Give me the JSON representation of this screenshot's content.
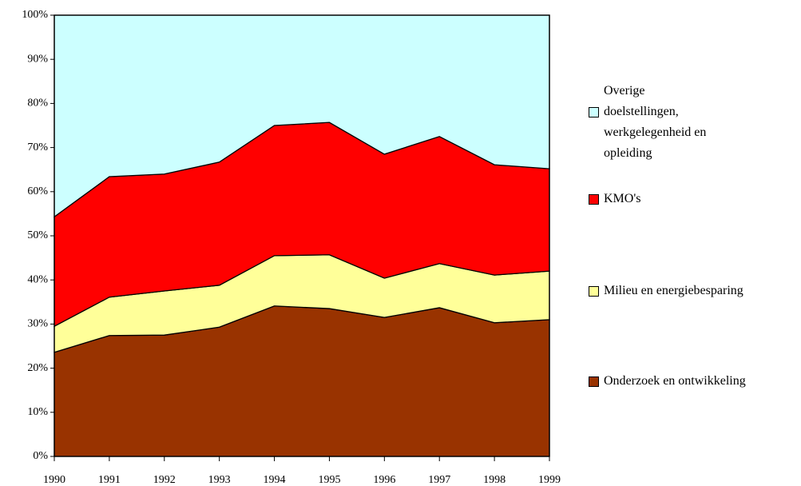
{
  "chart_data": {
    "type": "stacked-area",
    "categories": [
      "1990",
      "1991",
      "1992",
      "1993",
      "1994",
      "1995",
      "1996",
      "1997",
      "1998",
      "1999"
    ],
    "series": [
      {
        "name": "Onderzoek en ontwikkeling",
        "color": "#993300",
        "values": [
          23.6,
          27.4,
          27.5,
          29.3,
          34.1,
          33.5,
          31.5,
          33.7,
          30.3,
          31.0
        ]
      },
      {
        "name": "Milieu en energiebesparing",
        "color": "#ffff99",
        "values": [
          5.9,
          8.7,
          10.0,
          9.5,
          11.4,
          12.2,
          8.9,
          10.0,
          10.8,
          11.0
        ]
      },
      {
        "name": "KMO's",
        "color": "#ff0000",
        "values": [
          24.8,
          27.3,
          26.5,
          27.9,
          29.5,
          30.0,
          28.1,
          28.8,
          25.0,
          23.2
        ]
      },
      {
        "name": "Overige doelstellingen, werkgelegenheid en opleiding",
        "color": "#ccffff",
        "values": [
          45.7,
          36.6,
          36.0,
          33.3,
          25.0,
          24.3,
          31.5,
          27.5,
          33.9,
          34.8
        ]
      }
    ],
    "ylim": [
      0,
      100
    ],
    "yticks": [
      {
        "value": 0,
        "label": "0%"
      },
      {
        "value": 10,
        "label": "10%"
      },
      {
        "value": 20,
        "label": "20%"
      },
      {
        "value": 30,
        "label": "30%"
      },
      {
        "value": 40,
        "label": "40%"
      },
      {
        "value": 50,
        "label": "50%"
      },
      {
        "value": 60,
        "label": "60%"
      },
      {
        "value": 70,
        "label": "70%"
      },
      {
        "value": 80,
        "label": "80%"
      },
      {
        "value": 90,
        "label": "90%"
      },
      {
        "value": 100,
        "label": "100%"
      }
    ],
    "legend": "right"
  }
}
